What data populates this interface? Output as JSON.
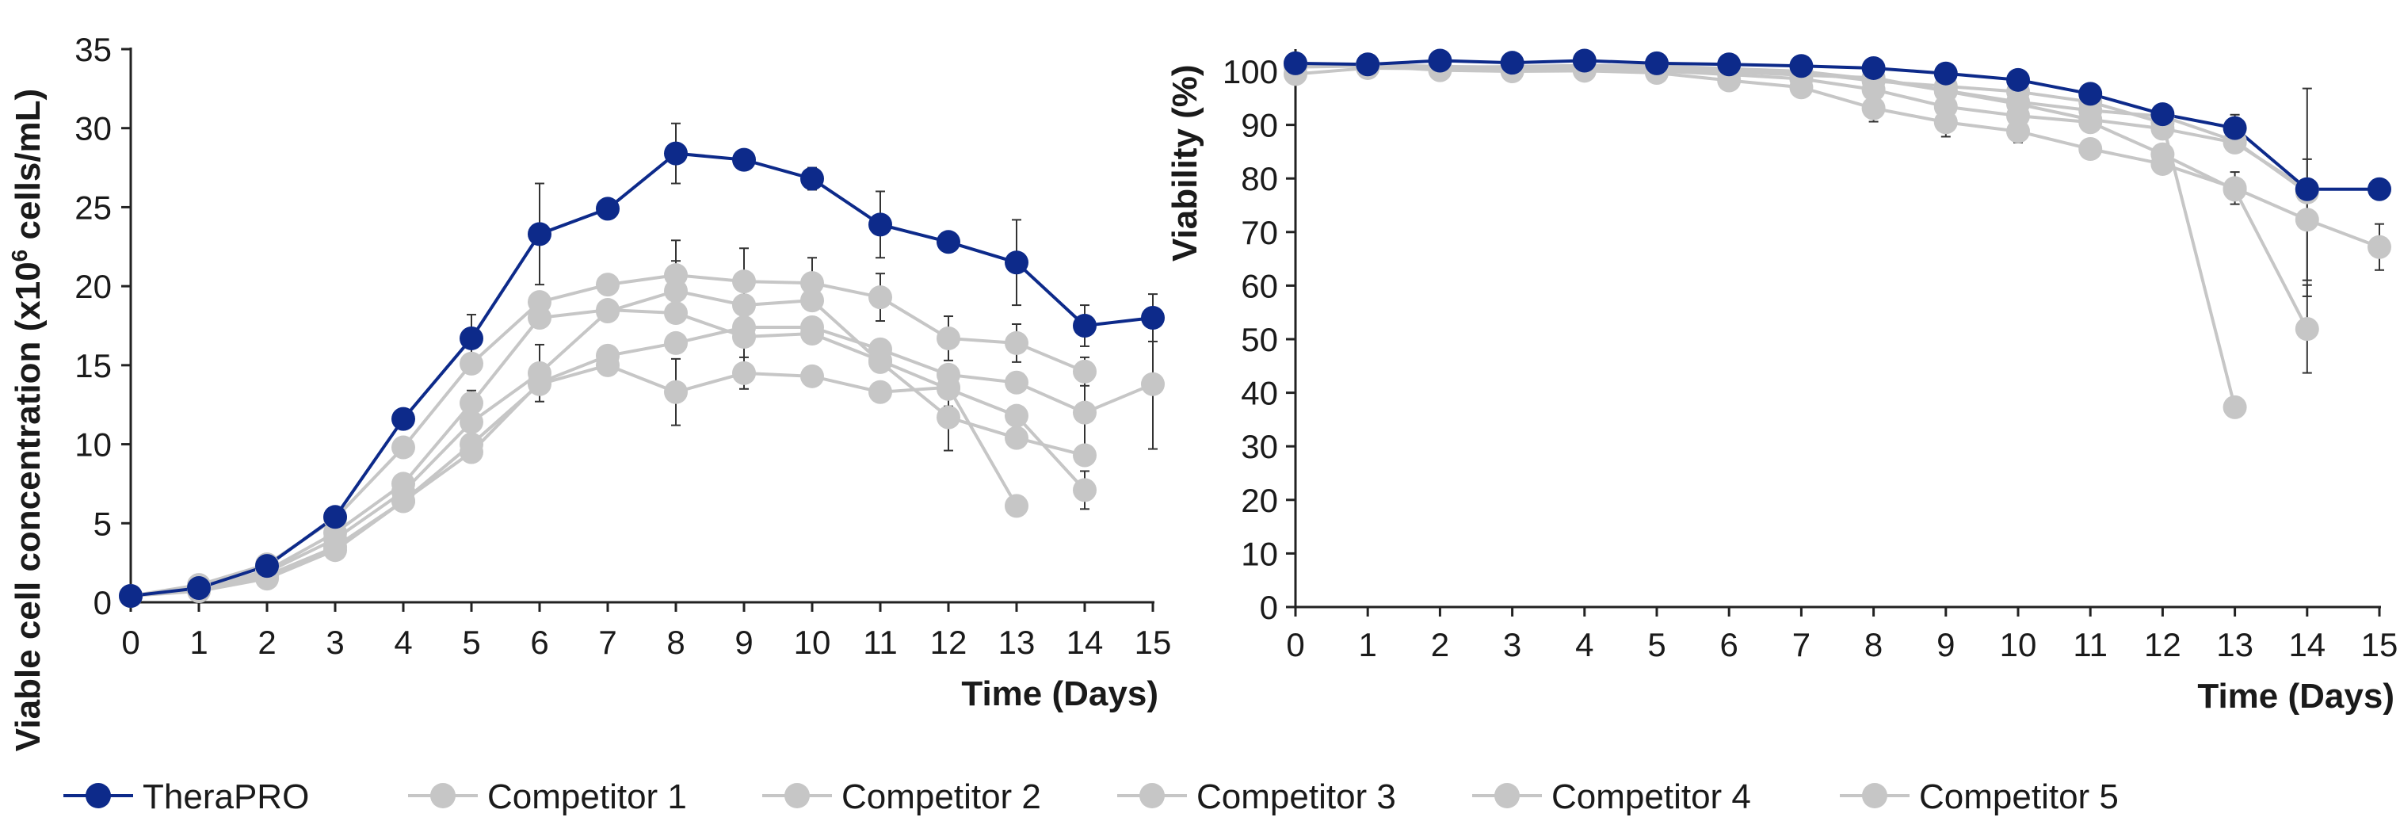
{
  "legend": [
    {
      "name": "TheraPRO",
      "color": "#0d2a8a"
    },
    {
      "name": "Competitor 1",
      "color": "#c6c6c6"
    },
    {
      "name": "Competitor 2",
      "color": "#c6c6c6"
    },
    {
      "name": "Competitor 3",
      "color": "#c6c6c6"
    },
    {
      "name": "Competitor 4",
      "color": "#c6c6c6"
    },
    {
      "name": "Competitor 5",
      "color": "#c6c6c6"
    }
  ],
  "chart_data": [
    {
      "type": "line",
      "title": "",
      "xlabel": "Time (Days)",
      "ylabel_prefix": "Viable cell concentration (x10",
      "ylabel_sup": "6",
      "ylabel_suffix": " cells/mL)",
      "xlim": [
        0,
        15
      ],
      "ylim": [
        0,
        35
      ],
      "xticks": [
        0,
        1,
        2,
        3,
        4,
        5,
        6,
        7,
        8,
        9,
        10,
        11,
        12,
        13,
        14,
        15
      ],
      "yticks": [
        0,
        5,
        10,
        15,
        20,
        25,
        30,
        35
      ],
      "grid": false,
      "legend_position": "bottom",
      "series": [
        {
          "name": "TheraPRO",
          "color": "#0d2a8a",
          "x": [
            0,
            1,
            2,
            3,
            4,
            5,
            6,
            7,
            8,
            9,
            10,
            11,
            12,
            13,
            14,
            15
          ],
          "y": [
            0.4,
            0.9,
            2.3,
            5.4,
            11.6,
            16.7,
            23.3,
            24.9,
            28.4,
            28.0,
            26.8,
            23.9,
            22.8,
            21.5,
            17.5,
            18.0
          ],
          "err": [
            0,
            0,
            0,
            0,
            0,
            1.5,
            3.2,
            0,
            1.9,
            0,
            0.7,
            2.1,
            0,
            2.7,
            1.3,
            1.5
          ]
        },
        {
          "name": "Competitor 1",
          "color": "#c6c6c6",
          "x": [
            0,
            1,
            2,
            3,
            4,
            5,
            6,
            7,
            8,
            9,
            10,
            11,
            12,
            13
          ],
          "y": [
            0.4,
            0.8,
            1.7,
            3.5,
            6.4,
            10.0,
            13.8,
            15.0,
            13.3,
            14.5,
            14.3,
            13.3,
            13.6,
            6.1
          ],
          "err": [
            0,
            0,
            0,
            0,
            0,
            0,
            0,
            0,
            2.1,
            1.0,
            0,
            0,
            1.2,
            0
          ]
        },
        {
          "name": "Competitor 2",
          "color": "#c6c6c6",
          "x": [
            0,
            1,
            2,
            3,
            4,
            5,
            6,
            7,
            8,
            9,
            10,
            11,
            12,
            13,
            14
          ],
          "y": [
            0.4,
            1.1,
            2.4,
            5.3,
            9.8,
            15.1,
            19.0,
            20.1,
            20.7,
            20.3,
            20.2,
            19.3,
            16.7,
            16.4,
            14.6
          ],
          "err": [
            0,
            0,
            0,
            0,
            0,
            0,
            0,
            0,
            2.2,
            2.1,
            1.6,
            1.5,
            1.4,
            1.2,
            0.9
          ]
        },
        {
          "name": "Competitor 3",
          "color": "#c6c6c6",
          "x": [
            0,
            1,
            2,
            3,
            4,
            5,
            6,
            7,
            8,
            9,
            10,
            11,
            12,
            13,
            14,
            15
          ],
          "y": [
            0.4,
            0.7,
            1.5,
            3.3,
            6.4,
            9.5,
            13.9,
            15.6,
            16.4,
            17.4,
            17.4,
            16.0,
            14.4,
            13.9,
            12.0,
            13.8
          ],
          "err": [
            0,
            0,
            0,
            0,
            0,
            0,
            0,
            0,
            0,
            0,
            0,
            0,
            0,
            0,
            2.1,
            4.1
          ]
        },
        {
          "name": "Competitor 4",
          "color": "#c6c6c6",
          "x": [
            0,
            1,
            2,
            3,
            4,
            5,
            6,
            7,
            8,
            9,
            10,
            11,
            12,
            13,
            14
          ],
          "y": [
            0.4,
            0.9,
            2.0,
            4.4,
            7.5,
            12.6,
            18.0,
            18.5,
            18.3,
            16.8,
            17.0,
            15.3,
            13.5,
            11.8,
            7.1
          ],
          "err": [
            0,
            0,
            0,
            0,
            0,
            0.8,
            0,
            0,
            0,
            1.8,
            0,
            0,
            0,
            0,
            1.2
          ]
        },
        {
          "name": "Competitor 5",
          "color": "#c6c6c6",
          "x": [
            0,
            1,
            2,
            3,
            4,
            5,
            6,
            7,
            8,
            9,
            10,
            11,
            12,
            13,
            14
          ],
          "y": [
            0.4,
            0.9,
            1.9,
            4.0,
            7.0,
            11.4,
            14.5,
            18.4,
            19.7,
            18.8,
            19.1,
            15.2,
            11.7,
            10.4,
            9.3
          ],
          "err": [
            0,
            0,
            0,
            0,
            0,
            1.2,
            1.8,
            0,
            1.9,
            0,
            0,
            0,
            2.1,
            0,
            0
          ]
        }
      ]
    },
    {
      "type": "line",
      "title": "",
      "xlabel": "Time (Days)",
      "ylabel": "Viability (%)",
      "xlim": [
        0,
        15
      ],
      "ylim": [
        0,
        100
      ],
      "xticks": [
        0,
        1,
        2,
        3,
        4,
        5,
        6,
        7,
        8,
        9,
        10,
        11,
        12,
        13,
        14,
        15
      ],
      "yticks": [
        0,
        10,
        20,
        30,
        40,
        50,
        60,
        70,
        80,
        90,
        100
      ],
      "grid": false,
      "legend_position": "bottom",
      "series": [
        {
          "name": "TheraPRO",
          "color": "#0d2a8a",
          "x": [
            0,
            1,
            2,
            3,
            4,
            5,
            6,
            7,
            8,
            9,
            10,
            11,
            12,
            13,
            14,
            15
          ],
          "y": [
            101.5,
            101.3,
            102.0,
            101.6,
            102.0,
            101.5,
            101.3,
            101.0,
            100.6,
            99.6,
            98.4,
            95.8,
            92.0,
            89.4,
            78.0,
            78.0
          ],
          "err": [
            0,
            0,
            0,
            0,
            0,
            0,
            0,
            0,
            0,
            0,
            0,
            0,
            0,
            2.5,
            0,
            0
          ]
        },
        {
          "name": "Competitor 1",
          "color": "#c6c6c6",
          "x": [
            0,
            1,
            2,
            3,
            4,
            5,
            6,
            7,
            8,
            9,
            10,
            11,
            12,
            13
          ],
          "y": [
            99.5,
            100.6,
            100.5,
            100.8,
            100.8,
            100.6,
            100.2,
            99.8,
            98.2,
            97.2,
            96.2,
            94.3,
            90.4,
            37.3
          ],
          "err": [
            0,
            0,
            0,
            0,
            0,
            0,
            0,
            0,
            0,
            0,
            0,
            0,
            0,
            0
          ]
        },
        {
          "name": "Competitor 2",
          "color": "#c6c6c6",
          "x": [
            0,
            1,
            2,
            3,
            4,
            5,
            6,
            7,
            8,
            9,
            10,
            11,
            12,
            13,
            14
          ],
          "y": [
            101.0,
            101.3,
            100.9,
            100.8,
            100.5,
            100.2,
            99.9,
            99.3,
            98.8,
            96.3,
            93.9,
            91.0,
            89.3,
            86.7,
            78.0
          ],
          "err": [
            0,
            0,
            0,
            0,
            0,
            0,
            0,
            0,
            0,
            0,
            0,
            0,
            0,
            0,
            0
          ]
        },
        {
          "name": "Competitor 3",
          "color": "#c6c6c6",
          "x": [
            0,
            1,
            2,
            3,
            4,
            5,
            6,
            7,
            8,
            9,
            10,
            11,
            12,
            13,
            14,
            15
          ],
          "y": [
            101.5,
            101.0,
            100.2,
            100.0,
            100.1,
            99.7,
            98.3,
            97.0,
            93.1,
            90.5,
            88.8,
            85.5,
            82.7,
            78.2,
            72.3,
            67.2
          ],
          "err": [
            0,
            0,
            0,
            0,
            0,
            0,
            1.8,
            0,
            2.5,
            2.7,
            2.1,
            0,
            0,
            3.0,
            11.3,
            4.3
          ]
        },
        {
          "name": "Competitor 4",
          "color": "#c6c6c6",
          "x": [
            0,
            1,
            2,
            3,
            4,
            5,
            6,
            7,
            8,
            9,
            10,
            11,
            12,
            13,
            14
          ],
          "y": [
            101.0,
            101.2,
            100.7,
            100.9,
            101.1,
            101.0,
            100.5,
            100.0,
            98.5,
            96.4,
            94.3,
            92.7,
            91.6,
            87.0,
            77.4
          ],
          "err": [
            0,
            0,
            0,
            0,
            0,
            0,
            0,
            0,
            0,
            0,
            0,
            0,
            0,
            0,
            19.4
          ]
        },
        {
          "name": "Competitor 5",
          "color": "#c6c6c6",
          "x": [
            0,
            1,
            2,
            3,
            4,
            5,
            6,
            7,
            8,
            9,
            10,
            11,
            12,
            13,
            14
          ],
          "y": [
            100.8,
            101.0,
            100.6,
            100.6,
            100.5,
            100.1,
            99.4,
            98.6,
            96.6,
            93.4,
            91.7,
            90.5,
            84.5,
            77.9,
            51.9
          ],
          "err": [
            0,
            0,
            0,
            0,
            0,
            0,
            0,
            0,
            0,
            0,
            0,
            0,
            0,
            0,
            8.2
          ]
        }
      ]
    }
  ]
}
